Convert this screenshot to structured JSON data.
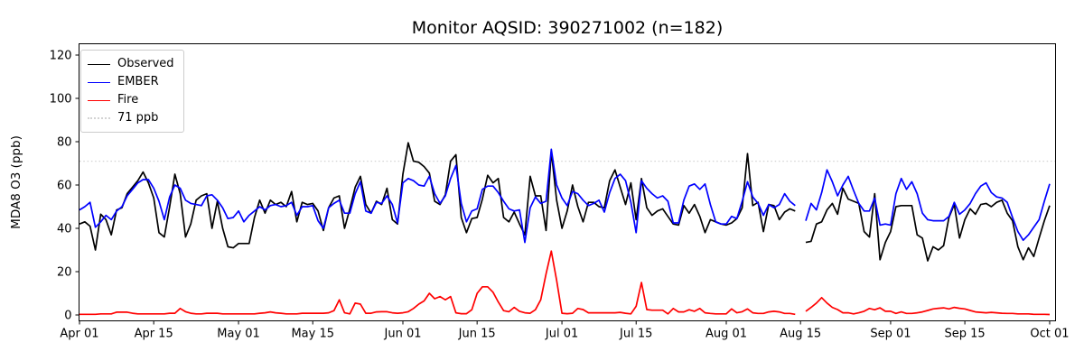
{
  "title": "Monitor AQSID: 390271002 (n=182)",
  "chart_data": {
    "type": "line",
    "title": "Monitor AQSID: 390271002 (n=182)",
    "xlabel": "",
    "ylabel": "MDA8 O3 (ppb)",
    "ylim": [
      -2.5,
      125.4
    ],
    "y_ticks": [
      0,
      20,
      40,
      60,
      80,
      100,
      120
    ],
    "grid": false,
    "legend_position": "upper-left",
    "n_days": 184,
    "x_start": "Apr 01",
    "x_end": "Oct 01",
    "missing_day_index": 136,
    "x_ticks": [
      {
        "day": 0,
        "label": "Apr 01"
      },
      {
        "day": 14,
        "label": "Apr 15"
      },
      {
        "day": 30,
        "label": "May 01"
      },
      {
        "day": 44,
        "label": "May 15"
      },
      {
        "day": 61,
        "label": "Jun 01"
      },
      {
        "day": 75,
        "label": "Jun 15"
      },
      {
        "day": 91,
        "label": "Jul 01"
      },
      {
        "day": 105,
        "label": "Jul 15"
      },
      {
        "day": 122,
        "label": "Aug 01"
      },
      {
        "day": 136,
        "label": "Aug 15"
      },
      {
        "day": 153,
        "label": "Sep 01"
      },
      {
        "day": 167,
        "label": "Sep 15"
      },
      {
        "day": 183,
        "label": "Oct 01"
      }
    ],
    "reference_line": {
      "label": "71 ppb",
      "value": 71,
      "color": "#d3d3d3",
      "style": "dotted"
    },
    "legend_items": [
      {
        "label": "Observed",
        "color": "#000000",
        "style": "solid"
      },
      {
        "label": "EMBER",
        "color": "#0000ff",
        "style": "solid"
      },
      {
        "label": "Fire",
        "color": "#ff0000",
        "style": "solid"
      },
      {
        "label": "71 ppb",
        "color": "#d3d3d3",
        "style": "dotted"
      }
    ],
    "series": [
      {
        "name": "Observed",
        "color": "#000000",
        "values": [
          42,
          43,
          41,
          30,
          46.5,
          44,
          37,
          48.5,
          49.5,
          56,
          59,
          62,
          66,
          61,
          54,
          38,
          36,
          50,
          65,
          56,
          36,
          42,
          53,
          55,
          56,
          40,
          52.5,
          40,
          31.5,
          31,
          33,
          33,
          33,
          45,
          53,
          47,
          53,
          51,
          52,
          50,
          57,
          43,
          52,
          51,
          51.5,
          48,
          39,
          49.5,
          54,
          55,
          40,
          49,
          59,
          64,
          51,
          47,
          52.5,
          51,
          58.5,
          44,
          42,
          65,
          79.5,
          71,
          70.5,
          68.5,
          65.5,
          52.5,
          51,
          55.5,
          71,
          74,
          45,
          38,
          44.5,
          45,
          53.5,
          64.5,
          61,
          63,
          45,
          43,
          47.5,
          42,
          37,
          64,
          55,
          55,
          39,
          75.5,
          53,
          40,
          48,
          60,
          50,
          43,
          52,
          52,
          50,
          49.5,
          62,
          67,
          59,
          51,
          61,
          44,
          63,
          49.5,
          46,
          48,
          49,
          45.5,
          42,
          41.5,
          50.5,
          47,
          51,
          45.5,
          38,
          44,
          43,
          42,
          41.5,
          42.5,
          44.5,
          49.5,
          74.5,
          50.5,
          52,
          38.5,
          51,
          50.5,
          44,
          47.5,
          49,
          48,
          null,
          33.5,
          34,
          42,
          43,
          48.5,
          51.5,
          46.5,
          58.5,
          53.5,
          52.5,
          51.5,
          38.5,
          36,
          56,
          25.5,
          33.5,
          38.5,
          50,
          50.5,
          50.5,
          50.5,
          37,
          35.5,
          25,
          31.5,
          30,
          32,
          45,
          51,
          35.5,
          44,
          49,
          46.5,
          51,
          51.5,
          50,
          52,
          53,
          47,
          43.5,
          31.5,
          25.5,
          31,
          27,
          35.5,
          43.5,
          50.5
        ]
      },
      {
        "name": "EMBER",
        "color": "#0000ff",
        "values": [
          48.5,
          50,
          52,
          40.5,
          43,
          46,
          44,
          48,
          50,
          55,
          58,
          61,
          62.5,
          62.5,
          58.5,
          52.5,
          44,
          54.5,
          60,
          58.5,
          53,
          51.5,
          51,
          50.5,
          55,
          55.5,
          53,
          49.5,
          44.5,
          45,
          48,
          43,
          46,
          48,
          50,
          48.5,
          50.5,
          51,
          50,
          50.5,
          52,
          46,
          50,
          50,
          50.5,
          43.5,
          40,
          49.5,
          51.5,
          53,
          47,
          47,
          56,
          61.5,
          48,
          47,
          52,
          51.5,
          55,
          51,
          42.5,
          61,
          63,
          62,
          60,
          59.5,
          64,
          56,
          51.5,
          55,
          63,
          69,
          51.5,
          43,
          48,
          49,
          58,
          59.5,
          59.5,
          56.5,
          52.5,
          49,
          48,
          48.5,
          33.5,
          49.5,
          54.5,
          51.5,
          52.5,
          76.5,
          60,
          54,
          50.5,
          57,
          56,
          53,
          50.5,
          51.5,
          53,
          47.5,
          56.5,
          63,
          65,
          62,
          52,
          38,
          62,
          58.5,
          56,
          54,
          55,
          52.5,
          42.5,
          42.5,
          53,
          59.5,
          60.5,
          58,
          60.5,
          51,
          43,
          42,
          42,
          45.5,
          44.5,
          52.5,
          61.5,
          54.5,
          51.5,
          46,
          51,
          49.5,
          51,
          56,
          52.5,
          50.5,
          null,
          43.5,
          51.5,
          48.5,
          56.5,
          67,
          61.5,
          55,
          60,
          64,
          57.5,
          51.5,
          48,
          48,
          54,
          41.5,
          42,
          41.5,
          56,
          63,
          58,
          61.5,
          56,
          47,
          44,
          43.5,
          43.5,
          43.5,
          45.5,
          52,
          46.5,
          48.5,
          51.5,
          56,
          59.5,
          61,
          56.5,
          54.5,
          54,
          52,
          45,
          38.5,
          34.5,
          37,
          40.5,
          44,
          52.5,
          60.5
        ]
      },
      {
        "name": "Fire",
        "color": "#ff0000",
        "values": [
          0.3,
          0.3,
          0.3,
          0.3,
          0.5,
          0.5,
          0.5,
          1.3,
          1.3,
          1.3,
          0.8,
          0.5,
          0.5,
          0.5,
          0.5,
          0.5,
          0.5,
          0.8,
          0.8,
          3,
          1.5,
          0.8,
          0.5,
          0.5,
          0.8,
          0.8,
          0.8,
          0.5,
          0.5,
          0.5,
          0.5,
          0.5,
          0.5,
          0.5,
          0.8,
          1,
          1.4,
          1,
          0.8,
          0.5,
          0.5,
          0.5,
          0.8,
          0.8,
          0.8,
          0.8,
          0.8,
          1,
          2,
          7,
          1,
          0.5,
          5.5,
          5,
          0.8,
          0.8,
          1.4,
          1.5,
          1.5,
          1,
          0.8,
          1,
          1.5,
          3,
          5,
          6.5,
          10,
          7.5,
          8.5,
          7,
          8.5,
          1,
          0.6,
          0.6,
          2.4,
          10,
          13,
          13,
          10.5,
          6,
          2,
          1.5,
          3.5,
          1.7,
          1,
          0.8,
          2.4,
          7,
          19,
          29.5,
          16,
          0.8,
          0.6,
          0.8,
          3,
          2.5,
          1,
          1,
          1,
          1,
          1,
          1,
          1.2,
          0.8,
          0.5,
          4,
          15,
          2.5,
          2.2,
          2.2,
          2.2,
          0.5,
          3,
          1.4,
          1.4,
          2.4,
          1.7,
          3,
          1,
          0.7,
          0.5,
          0.5,
          0.5,
          2.8,
          1,
          1.5,
          2.8,
          1,
          0.7,
          0.7,
          1.4,
          1.7,
          1.4,
          0.7,
          0.7,
          0.3,
          null,
          1.7,
          3.5,
          5.5,
          8,
          5.5,
          3.5,
          2.5,
          1,
          1,
          0.5,
          1,
          1.7,
          3,
          2.4,
          3.3,
          1.7,
          1.7,
          0.7,
          1.4,
          0.7,
          0.7,
          1,
          1.4,
          2.1,
          2.8,
          3.1,
          3.3,
          2.8,
          3.5,
          3.1,
          2.8,
          2.1,
          1.4,
          1.2,
          1,
          1.2,
          1,
          0.8,
          0.7,
          0.7,
          0.5,
          0.5,
          0.5,
          0.3,
          0.3,
          0.3,
          0.2
        ]
      }
    ]
  }
}
